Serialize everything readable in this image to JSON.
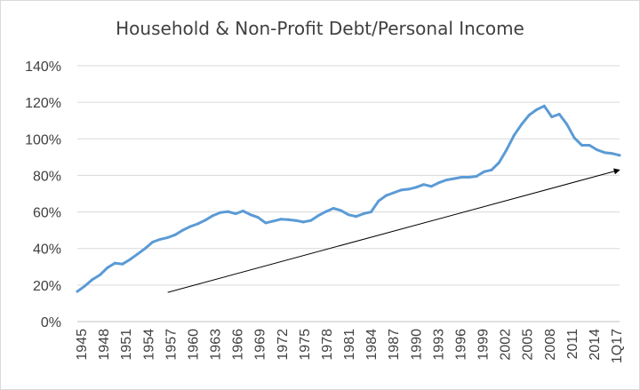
{
  "chart_data": {
    "type": "line",
    "title": "Household & Non-Profit Debt/Personal Income",
    "xlabel": "",
    "ylabel": "",
    "ylim": [
      0,
      140
    ],
    "y_ticks": [
      "0%",
      "20%",
      "40%",
      "60%",
      "80%",
      "100%",
      "120%",
      "140%"
    ],
    "x_ticks": [
      "1945",
      "1948",
      "1951",
      "1954",
      "1957",
      "1960",
      "1963",
      "1966",
      "1969",
      "1972",
      "1975",
      "1978",
      "1981",
      "1984",
      "1987",
      "1990",
      "1993",
      "1996",
      "1999",
      "2002",
      "2005",
      "2008",
      "2011",
      "2014",
      "1Q17"
    ],
    "grid": "horizontal",
    "legend": "none",
    "color": "#5b9bd5",
    "trend_arrow": {
      "from": [
        1957,
        16
      ],
      "to": [
        2017,
        83
      ]
    },
    "series": [
      {
        "x": [
          1945,
          1946,
          1947,
          1948,
          1949,
          1950,
          1951,
          1952,
          1953,
          1954,
          1955,
          1956,
          1957,
          1958,
          1959,
          1960,
          1961,
          1962,
          1963,
          1964,
          1965,
          1966,
          1967,
          1968,
          1969,
          1970,
          1971,
          1972,
          1973,
          1974,
          1975,
          1976,
          1977,
          1978,
          1979,
          1980,
          1981,
          1982,
          1983,
          1984,
          1985,
          1986,
          1987,
          1988,
          1989,
          1990,
          1991,
          1992,
          1993,
          1994,
          1995,
          1996,
          1997,
          1998,
          1999,
          2000,
          2001,
          2002,
          2003,
          2004,
          2005,
          2006,
          2007,
          2008,
          2009,
          2010,
          2011,
          2012,
          2013,
          2014,
          2015,
          2016,
          2017
        ],
        "values": [
          16.5,
          19.5,
          23,
          25.5,
          29.5,
          32,
          31.5,
          34,
          37,
          40,
          43.5,
          45,
          46,
          47.5,
          50,
          52,
          53.5,
          55.5,
          58,
          59.7,
          60.2,
          59,
          60.5,
          58.5,
          57,
          54,
          55,
          56,
          55.8,
          55.3,
          54.5,
          55.3,
          58,
          60.2,
          62,
          60.8,
          58.5,
          57.5,
          59,
          60,
          66,
          69,
          70.5,
          72,
          72.5,
          73.5,
          75,
          74,
          76,
          77.5,
          78.2,
          79,
          79,
          79.5,
          82,
          83,
          87,
          94,
          102,
          108,
          113,
          116,
          118,
          112,
          113.5,
          108,
          100.5,
          96.5,
          96.5,
          94,
          92.5,
          92,
          91
        ]
      }
    ]
  }
}
